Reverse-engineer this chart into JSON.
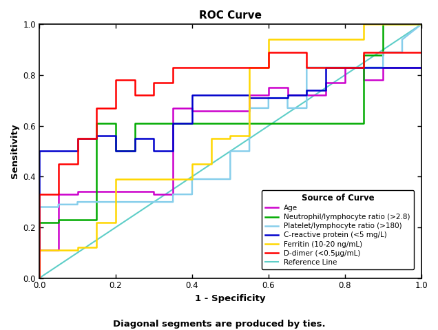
{
  "title": "ROC Curve",
  "xlabel": "1 - Specificity",
  "ylabel": "Sensitivity",
  "footnote": "Diagonal segments are produced by ties.",
  "xlim": [
    0.0,
    1.0
  ],
  "ylim": [
    0.0,
    1.0
  ],
  "xticks": [
    0.0,
    0.2,
    0.4,
    0.6,
    0.8,
    1.0
  ],
  "yticks": [
    0.0,
    0.2,
    0.4,
    0.6,
    0.8,
    1.0
  ],
  "reference_line": {
    "x": [
      0,
      1
    ],
    "y": [
      0,
      1
    ],
    "color": "#5ECEC8",
    "lw": 1.5
  },
  "curves": [
    {
      "label": "Age",
      "color": "#CC00CC",
      "lw": 1.8,
      "x": [
        0.0,
        0.0,
        0.05,
        0.05,
        0.1,
        0.1,
        0.3,
        0.3,
        0.35,
        0.35,
        0.4,
        0.4,
        0.55,
        0.55,
        0.6,
        0.6,
        0.65,
        0.65,
        0.75,
        0.75,
        0.8,
        0.8,
        0.85,
        0.85,
        0.9,
        0.9,
        1.0
      ],
      "y": [
        0.0,
        0.11,
        0.11,
        0.33,
        0.33,
        0.34,
        0.34,
        0.33,
        0.33,
        0.67,
        0.67,
        0.66,
        0.66,
        0.72,
        0.72,
        0.75,
        0.75,
        0.72,
        0.72,
        0.77,
        0.77,
        0.83,
        0.83,
        0.78,
        0.78,
        0.83,
        0.83
      ]
    },
    {
      "label": "Neutrophil/lymphocyte ratio (>2.8)",
      "color": "#00AA00",
      "lw": 1.8,
      "x": [
        0.0,
        0.0,
        0.05,
        0.05,
        0.15,
        0.15,
        0.2,
        0.2,
        0.25,
        0.25,
        0.85,
        0.85,
        0.9,
        0.9,
        1.0
      ],
      "y": [
        0.0,
        0.22,
        0.22,
        0.23,
        0.23,
        0.61,
        0.61,
        0.5,
        0.5,
        0.61,
        0.61,
        0.88,
        0.88,
        1.0,
        1.0
      ]
    },
    {
      "label": "Platelet/lymphocyte ratio (>180)",
      "color": "#87CEEB",
      "lw": 1.8,
      "x": [
        0.0,
        0.0,
        0.05,
        0.05,
        0.1,
        0.1,
        0.35,
        0.35,
        0.4,
        0.4,
        0.5,
        0.5,
        0.55,
        0.55,
        0.6,
        0.6,
        0.65,
        0.65,
        0.7,
        0.7,
        0.85,
        0.85,
        0.9,
        0.9,
        0.95,
        0.95,
        1.0
      ],
      "y": [
        0.0,
        0.28,
        0.28,
        0.29,
        0.29,
        0.3,
        0.3,
        0.33,
        0.33,
        0.39,
        0.39,
        0.5,
        0.5,
        0.67,
        0.67,
        0.71,
        0.71,
        0.67,
        0.67,
        0.83,
        0.83,
        0.83,
        0.83,
        0.89,
        0.89,
        0.94,
        1.0
      ]
    },
    {
      "label": "C-reactive protein (<5 mg/L)",
      "color": "#0000CC",
      "lw": 1.8,
      "x": [
        0.0,
        0.0,
        0.1,
        0.1,
        0.15,
        0.15,
        0.2,
        0.2,
        0.25,
        0.25,
        0.3,
        0.3,
        0.35,
        0.35,
        0.4,
        0.4,
        0.55,
        0.55,
        0.65,
        0.65,
        0.7,
        0.7,
        0.75,
        0.75,
        0.8,
        0.8,
        1.0
      ],
      "y": [
        0.0,
        0.5,
        0.5,
        0.55,
        0.55,
        0.56,
        0.56,
        0.5,
        0.5,
        0.55,
        0.55,
        0.5,
        0.5,
        0.61,
        0.61,
        0.72,
        0.72,
        0.71,
        0.71,
        0.72,
        0.72,
        0.74,
        0.74,
        0.83,
        0.83,
        0.83,
        0.83
      ]
    },
    {
      "label": "Ferritin (10-20 ng/mL)",
      "color": "#FFD700",
      "lw": 1.8,
      "x": [
        0.0,
        0.0,
        0.1,
        0.1,
        0.15,
        0.15,
        0.2,
        0.2,
        0.3,
        0.3,
        0.35,
        0.35,
        0.4,
        0.4,
        0.45,
        0.45,
        0.5,
        0.5,
        0.55,
        0.55,
        0.6,
        0.6,
        0.65,
        0.65,
        0.85,
        0.85,
        1.0
      ],
      "y": [
        0.0,
        0.11,
        0.11,
        0.12,
        0.12,
        0.22,
        0.22,
        0.39,
        0.39,
        0.39,
        0.39,
        0.39,
        0.39,
        0.45,
        0.45,
        0.55,
        0.55,
        0.56,
        0.56,
        0.83,
        0.83,
        0.94,
        0.94,
        0.94,
        0.94,
        1.0,
        1.0
      ]
    },
    {
      "label": "D-dimer (<0.5μg/mL)",
      "color": "#FF0000",
      "lw": 1.8,
      "x": [
        0.0,
        0.0,
        0.05,
        0.05,
        0.1,
        0.1,
        0.15,
        0.15,
        0.2,
        0.2,
        0.25,
        0.25,
        0.3,
        0.3,
        0.35,
        0.35,
        0.5,
        0.5,
        0.55,
        0.55,
        0.6,
        0.6,
        0.7,
        0.7,
        0.85,
        0.85,
        0.9,
        0.9,
        1.0
      ],
      "y": [
        0.0,
        0.33,
        0.33,
        0.45,
        0.45,
        0.55,
        0.55,
        0.67,
        0.67,
        0.78,
        0.78,
        0.72,
        0.72,
        0.77,
        0.77,
        0.83,
        0.83,
        0.83,
        0.83,
        0.83,
        0.83,
        0.89,
        0.89,
        0.83,
        0.83,
        0.89,
        0.89,
        0.89,
        0.89
      ]
    }
  ],
  "legend_title": "Source of Curve",
  "legend_entries": [
    "Age",
    "Neutrophil/lymphocyte ratio (>2.8)",
    "Platelet/lymphocyte ratio (>180)",
    "C-reactive protein (<5 mg/L)",
    "Ferritin (10-20 ng/mL)",
    "D-dimer (<0.5μg/mL)",
    "Reference Line"
  ],
  "legend_colors": [
    "#CC00CC",
    "#00AA00",
    "#87CEEB",
    "#0000CC",
    "#FFD700",
    "#FF0000",
    "#5ECEC8"
  ],
  "title_fontsize": 11,
  "axis_label_fontsize": 9.5,
  "tick_fontsize": 8.5,
  "footnote_fontsize": 9.5,
  "legend_fontsize": 7.5,
  "legend_title_fontsize": 8.5
}
